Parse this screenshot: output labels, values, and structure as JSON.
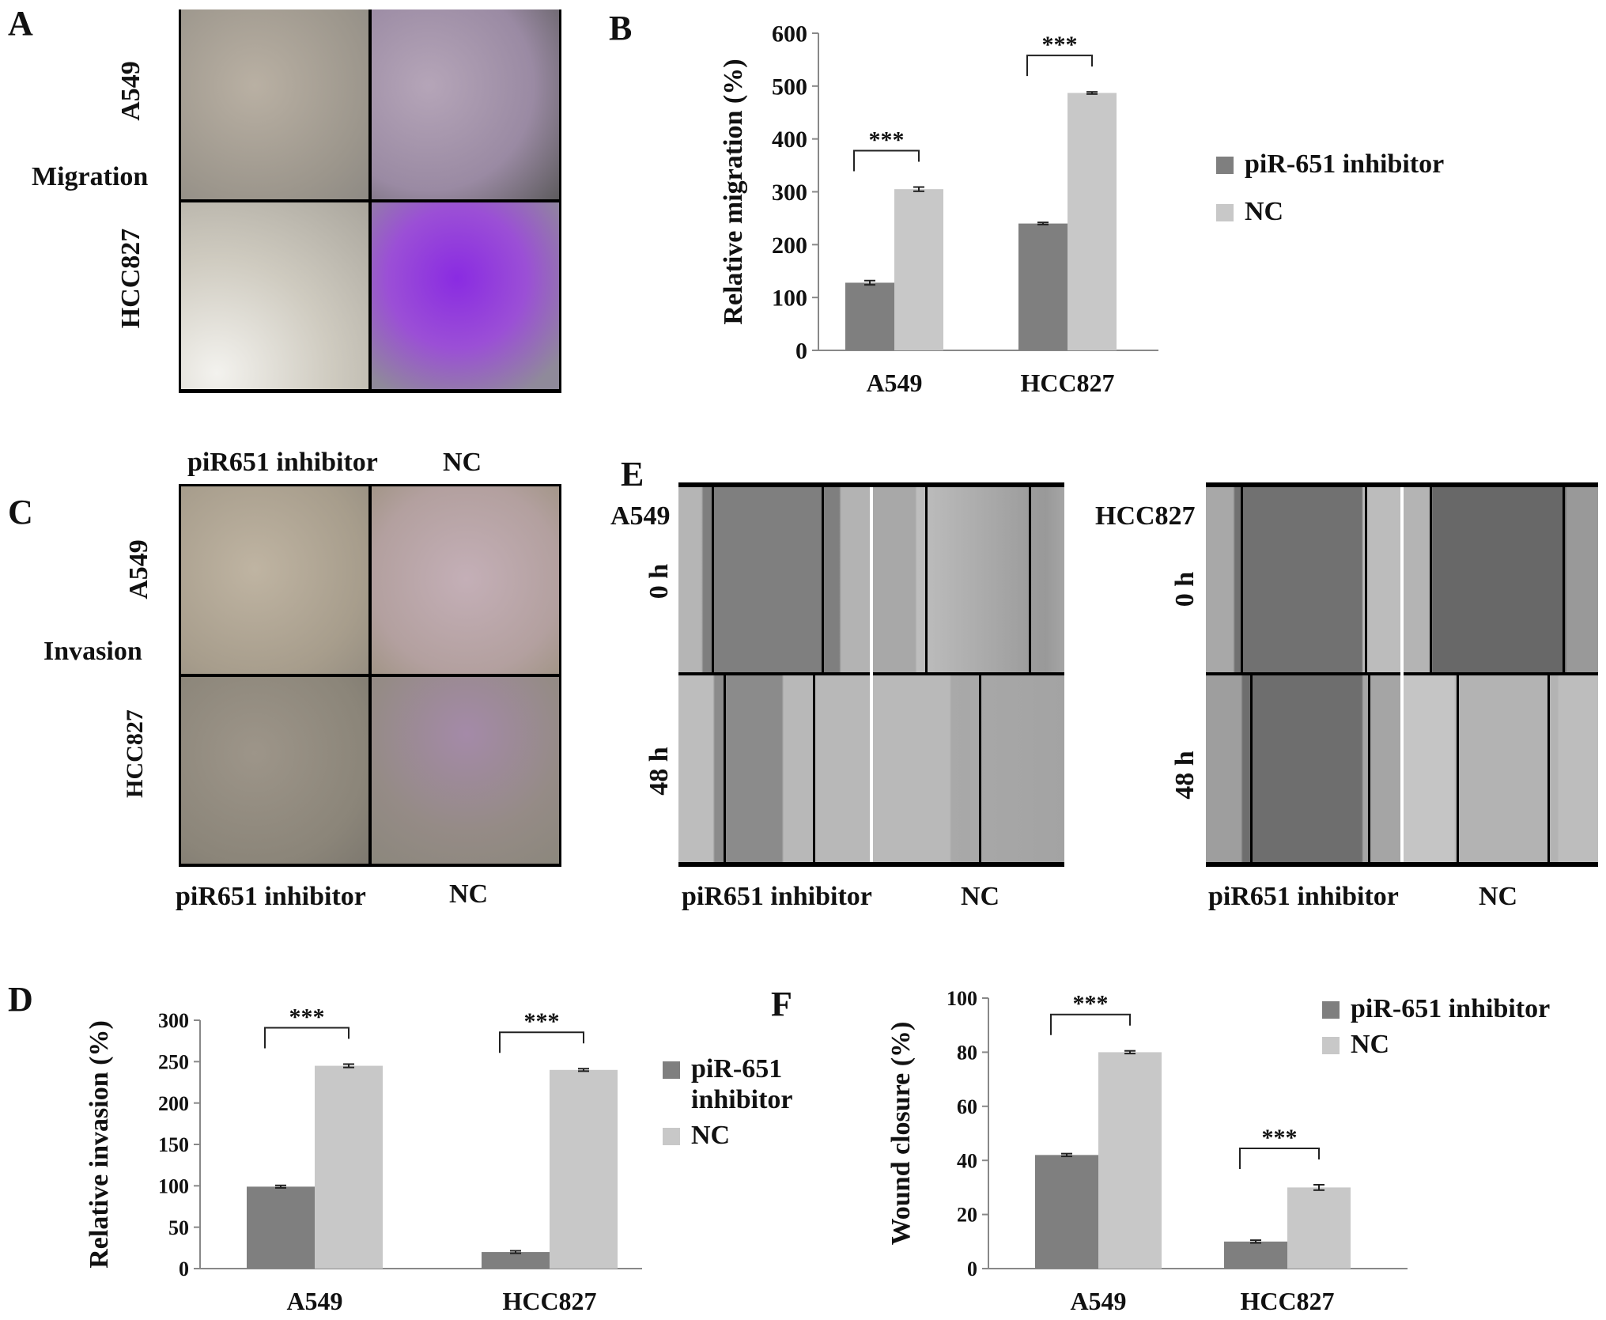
{
  "panels": {
    "a": {
      "letter": "A",
      "side_label": "Migration",
      "row_labels": [
        "A549",
        "HCC827"
      ]
    },
    "c": {
      "letter": "C",
      "side_label": "Invasion",
      "row_labels": [
        "A549",
        "HCC827"
      ],
      "col_labels_top": [
        "piR651 inhibitor",
        "NC"
      ],
      "col_labels_bottom": [
        "piR651 inhibitor",
        "NC"
      ]
    },
    "e": {
      "letter": "E",
      "left": {
        "cell_line": "A549",
        "rows": [
          "0 h",
          "48 h"
        ],
        "cols": [
          "piR651 inhibitor",
          "NC"
        ]
      },
      "right": {
        "cell_line": "HCC827",
        "rows": [
          "0 h",
          "48 h"
        ],
        "cols": [
          "piR651 inhibitor",
          "NC"
        ]
      }
    }
  },
  "colors": {
    "inhibitor": "#7f7f7f",
    "nc": "#c8c8c8",
    "stain_purple": "#8a2be2",
    "micro_gray": "#8c8c8c"
  },
  "chart_data": [
    {
      "id": "B",
      "type": "bar",
      "letter": "B",
      "categories": [
        "A549",
        "HCC827"
      ],
      "series": [
        {
          "name": "piR-651 inhibitor",
          "values": [
            128,
            240
          ],
          "errors": [
            4,
            2
          ]
        },
        {
          "name": "NC",
          "values": [
            305,
            487
          ],
          "errors": [
            4,
            2
          ]
        }
      ],
      "ylabel": "Relative migration (%)",
      "ylim": [
        0,
        600
      ],
      "yticks": [
        0,
        100,
        200,
        300,
        400,
        500,
        600
      ],
      "significance": [
        "***",
        "***"
      ],
      "legend": "right"
    },
    {
      "id": "D",
      "type": "bar",
      "letter": "D",
      "categories": [
        "A549",
        "HCC827"
      ],
      "series": [
        {
          "name": "piR-651 inhibitor",
          "values": [
            99,
            20
          ],
          "errors": [
            1.5,
            1.5
          ]
        },
        {
          "name": "NC",
          "values": [
            245,
            240
          ],
          "errors": [
            2,
            1.5
          ]
        }
      ],
      "ylabel": "Relative invasion (%)",
      "ylim": [
        0,
        300
      ],
      "yticks": [
        0,
        50,
        100,
        150,
        200,
        250,
        300
      ],
      "significance": [
        "***",
        "***"
      ],
      "legend": "right"
    },
    {
      "id": "F",
      "type": "bar",
      "letter": "F",
      "categories": [
        "A549",
        "HCC827"
      ],
      "series": [
        {
          "name": "piR-651 inhibitor",
          "values": [
            42,
            10
          ],
          "errors": [
            0.5,
            0.5
          ]
        },
        {
          "name": "NC",
          "values": [
            80,
            30
          ],
          "errors": [
            0.5,
            1
          ]
        }
      ],
      "ylabel": "Wound closure (%)",
      "ylim": [
        0,
        100
      ],
      "yticks": [
        0,
        20,
        40,
        60,
        80,
        100
      ],
      "significance": [
        "***",
        "***"
      ],
      "legend": "top-right"
    }
  ]
}
